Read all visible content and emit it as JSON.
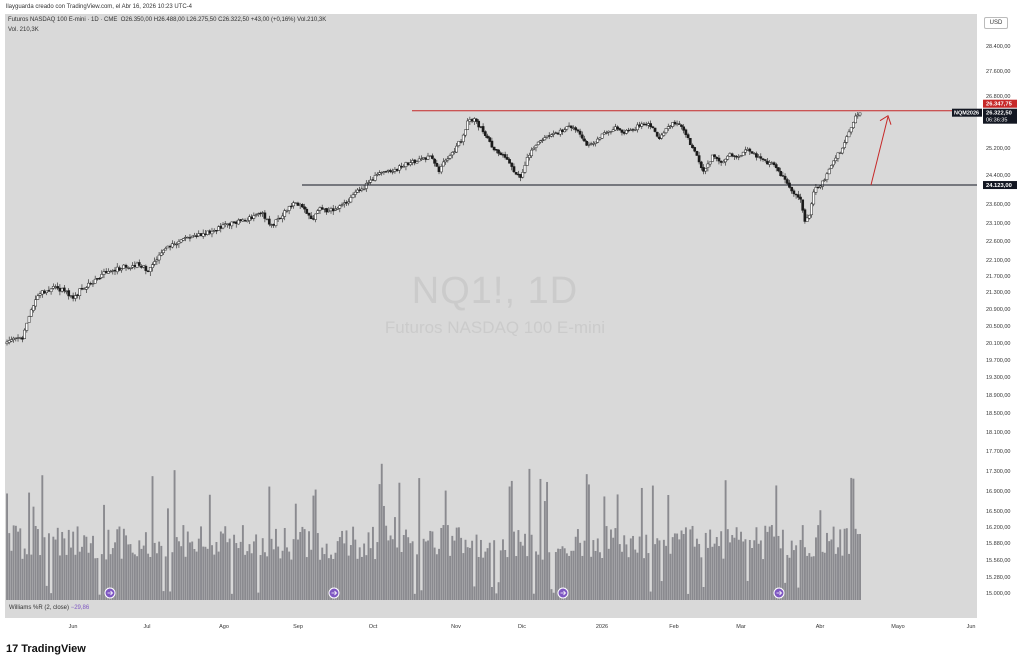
{
  "attribution": "llayguarda creado con TradingView.com, el Abr 16, 2026 10:23 UTC-4",
  "header": {
    "symbol": "Futuros NASDAQ 100 E-mini · 1D · CME",
    "ohlc": "O26.350,00  H26.488,00  L26.275,50  C26.322,50  +43,00 (+0,16%)  Vol.210,3K",
    "volume": "Vol.  210,3K"
  },
  "currency_button": "USD",
  "watermark": {
    "ticker": "NQ1!, 1D",
    "name": "Futuros NASDAQ 100 E-mini"
  },
  "price_axis": {
    "ticks": [
      {
        "label": "28.400,00",
        "y": 46
      },
      {
        "label": "27.600,00",
        "y": 71
      },
      {
        "label": "26.800,00",
        "y": 96
      },
      {
        "label": "25.200,00",
        "y": 148
      },
      {
        "label": "24.400,00",
        "y": 175
      },
      {
        "label": "23.600,00",
        "y": 204
      },
      {
        "label": "23.100,00",
        "y": 223
      },
      {
        "label": "22.600,00",
        "y": 241
      },
      {
        "label": "22.100,00",
        "y": 260
      },
      {
        "label": "21.700,00",
        "y": 276
      },
      {
        "label": "21.300,00",
        "y": 292
      },
      {
        "label": "20.900,00",
        "y": 309
      },
      {
        "label": "20.500,00",
        "y": 326
      },
      {
        "label": "20.100,00",
        "y": 343
      },
      {
        "label": "19.700,00",
        "y": 360
      },
      {
        "label": "19.300,00",
        "y": 377
      },
      {
        "label": "18.900,00",
        "y": 395
      },
      {
        "label": "18.500,00",
        "y": 413
      },
      {
        "label": "18.100,00",
        "y": 432
      },
      {
        "label": "17.700,00",
        "y": 451
      },
      {
        "label": "17.300,00",
        "y": 471
      },
      {
        "label": "16.900,00",
        "y": 491
      },
      {
        "label": "16.500,00",
        "y": 511
      },
      {
        "label": "16.200,00",
        "y": 527
      },
      {
        "label": "15.880,00",
        "y": 543
      },
      {
        "label": "15.560,00",
        "y": 560
      },
      {
        "label": "15.280,00",
        "y": 577
      },
      {
        "label": "15.000,00",
        "y": 593
      }
    ],
    "tags": {
      "high": "26.347,75",
      "symbol": "NQM2026",
      "price": "26.322,50",
      "countdown": "06:36:35",
      "support": "24.123,00"
    },
    "colors": {
      "high": "#c62828",
      "support": "#131722",
      "price": "#131722"
    }
  },
  "levels": {
    "resistance": {
      "price": 26347.75,
      "color": "#c62828"
    },
    "support": {
      "price": 24123.0,
      "color": "#131722"
    }
  },
  "date_axis": [
    {
      "label": "Jun",
      "x": 73
    },
    {
      "label": "Jul",
      "x": 147
    },
    {
      "label": "Ago",
      "x": 224
    },
    {
      "label": "Sep",
      "x": 298
    },
    {
      "label": "Oct",
      "x": 373
    },
    {
      "label": "Nov",
      "x": 456
    },
    {
      "label": "Dic",
      "x": 522
    },
    {
      "label": "2026",
      "x": 602
    },
    {
      "label": "Feb",
      "x": 674
    },
    {
      "label": "Mar",
      "x": 741
    },
    {
      "label": "Abr",
      "x": 820
    },
    {
      "label": "Mayo",
      "x": 898
    },
    {
      "label": "Jun",
      "x": 971
    }
  ],
  "indicator": {
    "name": "Williams %R (2, close)",
    "value": "−29,86"
  },
  "footer": {
    "brand": "TradingView"
  },
  "chart_data": {
    "type": "candlestick",
    "instrument": "NQ1!",
    "interval": "1D",
    "price_path": [
      [
        0,
        20000
      ],
      [
        4,
        20100
      ],
      [
        7,
        20150
      ],
      [
        10,
        20700
      ],
      [
        14,
        21250
      ],
      [
        20,
        21400
      ],
      [
        26,
        21350
      ],
      [
        30,
        21150
      ],
      [
        34,
        21400
      ],
      [
        40,
        21600
      ],
      [
        45,
        21800
      ],
      [
        50,
        21900
      ],
      [
        55,
        21950
      ],
      [
        60,
        22000
      ],
      [
        64,
        21850
      ],
      [
        68,
        22150
      ],
      [
        72,
        22400
      ],
      [
        76,
        22550
      ],
      [
        82,
        22700
      ],
      [
        88,
        22800
      ],
      [
        94,
        22900
      ],
      [
        100,
        23050
      ],
      [
        106,
        23150
      ],
      [
        112,
        23250
      ],
      [
        116,
        23350
      ],
      [
        120,
        23000
      ],
      [
        126,
        23400
      ],
      [
        130,
        23650
      ],
      [
        134,
        23550
      ],
      [
        138,
        23150
      ],
      [
        142,
        23500
      ],
      [
        146,
        23400
      ],
      [
        150,
        23500
      ],
      [
        154,
        23600
      ],
      [
        158,
        23900
      ],
      [
        162,
        24050
      ],
      [
        166,
        24300
      ],
      [
        170,
        24500
      ],
      [
        176,
        24550
      ],
      [
        182,
        24750
      ],
      [
        188,
        24850
      ],
      [
        192,
        24950
      ],
      [
        196,
        24500
      ],
      [
        198,
        24800
      ],
      [
        202,
        25050
      ],
      [
        206,
        25450
      ],
      [
        209,
        26000
      ],
      [
        212,
        26100
      ],
      [
        215,
        25800
      ],
      [
        218,
        25450
      ],
      [
        222,
        25100
      ],
      [
        226,
        24900
      ],
      [
        230,
        24550
      ],
      [
        233,
        24300
      ],
      [
        236,
        24900
      ],
      [
        240,
        25300
      ],
      [
        244,
        25500
      ],
      [
        248,
        25600
      ],
      [
        252,
        25750
      ],
      [
        256,
        25850
      ],
      [
        260,
        25600
      ],
      [
        264,
        25250
      ],
      [
        268,
        25500
      ],
      [
        272,
        25700
      ],
      [
        276,
        25800
      ],
      [
        280,
        25700
      ],
      [
        284,
        25800
      ],
      [
        288,
        25900
      ],
      [
        292,
        25900
      ],
      [
        296,
        25500
      ],
      [
        300,
        25900
      ],
      [
        304,
        26000
      ],
      [
        308,
        25600
      ],
      [
        312,
        25100
      ],
      [
        316,
        24500
      ],
      [
        320,
        24950
      ],
      [
        324,
        24800
      ],
      [
        328,
        25000
      ],
      [
        332,
        24900
      ],
      [
        336,
        25150
      ],
      [
        340,
        24950
      ],
      [
        344,
        24800
      ],
      [
        348,
        24700
      ],
      [
        352,
        24350
      ],
      [
        356,
        24000
      ],
      [
        360,
        23700
      ],
      [
        362,
        23150
      ],
      [
        364,
        23300
      ],
      [
        366,
        23950
      ],
      [
        370,
        24200
      ],
      [
        374,
        24700
      ],
      [
        378,
        25100
      ],
      [
        382,
        25650
      ],
      [
        385,
        26200
      ],
      [
        387,
        26322.5
      ]
    ],
    "volume_range": [
      1,
      12
    ]
  }
}
